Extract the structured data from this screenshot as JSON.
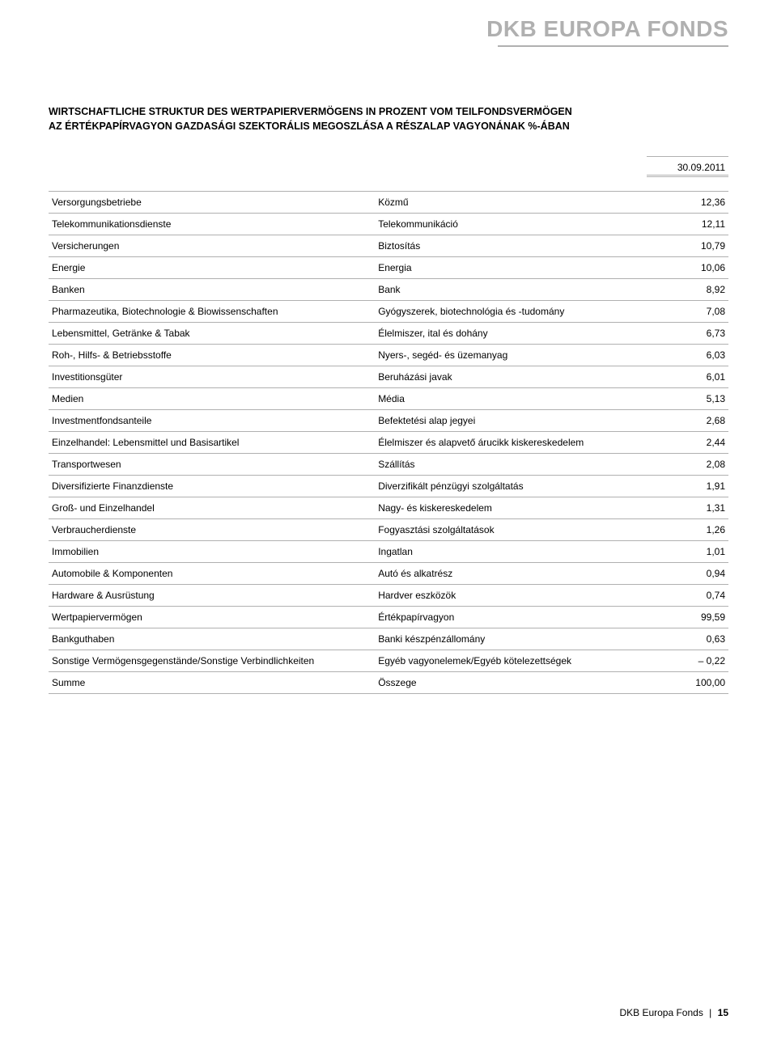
{
  "header": {
    "fund_title": "DKB EUROPA FONDS"
  },
  "section": {
    "title_de": "WIRTSCHAFTLICHE STRUKTUR DES WERTPAPIERVERMÖGENS IN PROZENT VOM TEILFONDSVERMÖGEN",
    "title_hu": "AZ ÉRTÉKPAPÍRVAGYON GAZDASÁGI SZEKTORÁLIS MEGOSZLÁSA A RÉSZALAP VAGYONÁNAK %-ÁBAN"
  },
  "table": {
    "date": "30.09.2011",
    "rows": [
      {
        "de": "Versorgungsbetriebe",
        "hu": "Közmű",
        "val": "12,36"
      },
      {
        "de": "Telekommunikationsdienste",
        "hu": "Telekommunikáció",
        "val": "12,11"
      },
      {
        "de": "Versicherungen",
        "hu": "Biztosítás",
        "val": "10,79"
      },
      {
        "de": "Energie",
        "hu": "Energia",
        "val": "10,06"
      },
      {
        "de": "Banken",
        "hu": "Bank",
        "val": "8,92"
      },
      {
        "de": "Pharmazeutika, Biotechnologie & Biowissenschaften",
        "hu": "Gyógyszerek, biotechnológia és -tudomány",
        "val": "7,08"
      },
      {
        "de": "Lebensmittel, Getränke & Tabak",
        "hu": "Élelmiszer, ital és dohány",
        "val": "6,73"
      },
      {
        "de": "Roh-, Hilfs- & Betriebsstoffe",
        "hu": "Nyers-, segéd- és üzemanyag",
        "val": "6,03"
      },
      {
        "de": "Investitionsgüter",
        "hu": "Beruházási javak",
        "val": "6,01"
      },
      {
        "de": "Medien",
        "hu": "Média",
        "val": "5,13"
      },
      {
        "de": "Investmentfondsanteile",
        "hu": "Befektetési alap jegyei",
        "val": "2,68"
      },
      {
        "de": "Einzelhandel: Lebensmittel und Basisartikel",
        "hu": "Élelmiszer és alapvető árucikk kiskereskedelem",
        "val": "2,44"
      },
      {
        "de": "Transportwesen",
        "hu": "Szállítás",
        "val": "2,08"
      },
      {
        "de": "Diversifizierte Finanzdienste",
        "hu": "Diverzifikált pénzügyi szolgáltatás",
        "val": "1,91"
      },
      {
        "de": "Groß- und Einzelhandel",
        "hu": "Nagy- és kiskereskedelem",
        "val": "1,31"
      },
      {
        "de": "Verbraucherdienste",
        "hu": "Fogyasztási szolgáltatások",
        "val": "1,26"
      },
      {
        "de": "Immobilien",
        "hu": "Ingatlan",
        "val": "1,01"
      },
      {
        "de": "Automobile & Komponenten",
        "hu": "Autó és alkatrész",
        "val": "0,94"
      },
      {
        "de": "Hardware & Ausrüstung",
        "hu": "Hardver eszközök",
        "val": "0,74"
      },
      {
        "de": "Wertpapiervermögen",
        "hu": "Értékpapírvagyon",
        "val": "99,59"
      },
      {
        "de": "Bankguthaben",
        "hu": "Banki készpénzállomány",
        "val": "0,63"
      },
      {
        "de": "Sonstige Vermögensgegenstände/Sonstige Verbindlichkeiten",
        "hu": "Egyéb vagyonelemek/Egyéb kötelezettségek",
        "val": "– 0,22"
      },
      {
        "de": "Summe",
        "hu": "Összege",
        "val": "100,00"
      }
    ]
  },
  "footer": {
    "label": "DKB Europa Fonds",
    "page": "15"
  }
}
